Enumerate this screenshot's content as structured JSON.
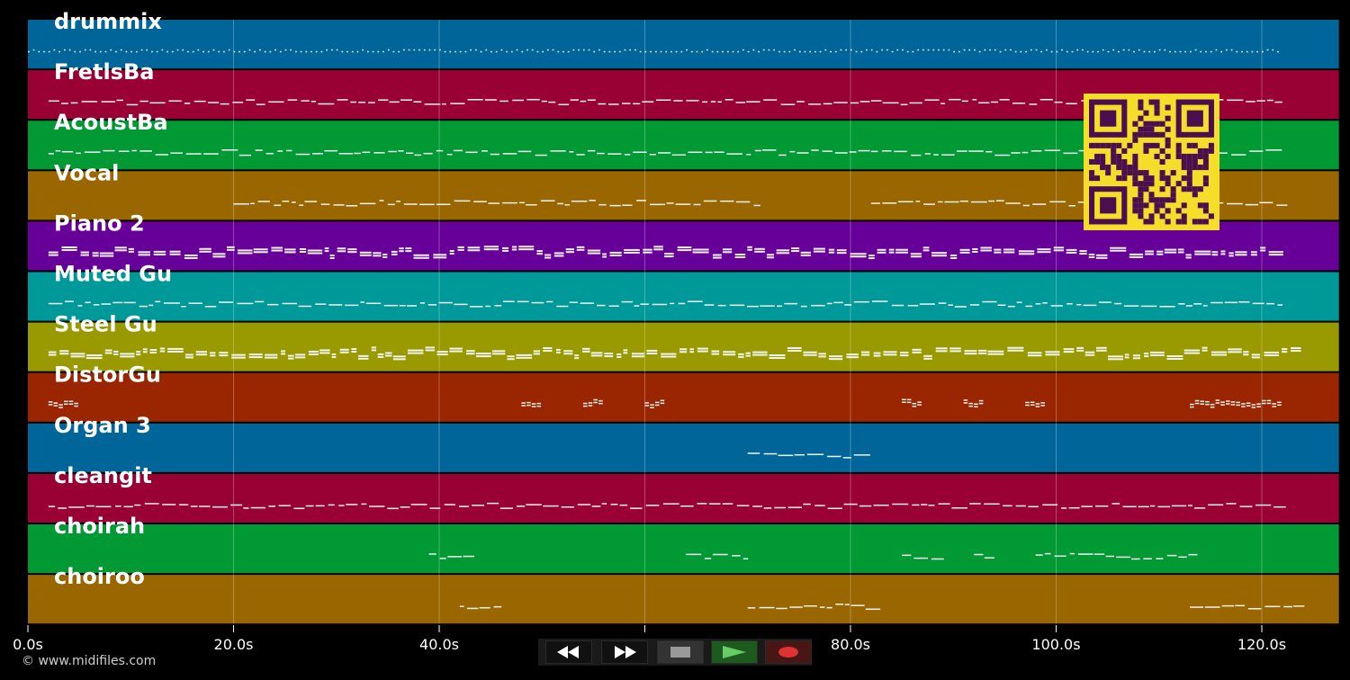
{
  "app": {
    "copyright": "© www.midifiles.com"
  },
  "timeline": {
    "ticks": [
      "0.0s",
      "20.0s",
      "40.0s",
      "60.0s",
      "80.0s",
      "100.0s",
      "120.0s"
    ],
    "tick_seconds": [
      0,
      20,
      40,
      60,
      80,
      100,
      120
    ],
    "duration_s": 127.5
  },
  "tracks": [
    {
      "name": "drummix",
      "color": "#006699",
      "active": [
        [
          0,
          122
        ]
      ],
      "style": "drum"
    },
    {
      "name": "FretlsBa",
      "color": "#990033",
      "active": [
        [
          2,
          122
        ]
      ],
      "style": "line"
    },
    {
      "name": "AcoustBa",
      "color": "#009933",
      "active": [
        [
          2,
          122
        ]
      ],
      "style": "line"
    },
    {
      "name": "Vocal",
      "color": "#996600",
      "active": [
        [
          20,
          71
        ],
        [
          82,
          122
        ]
      ],
      "style": "sparse"
    },
    {
      "name": "Piano 2",
      "color": "#660099",
      "active": [
        [
          2,
          122
        ]
      ],
      "style": "dense"
    },
    {
      "name": "Muted Gu",
      "color": "#009999",
      "active": [
        [
          2,
          122
        ]
      ],
      "style": "line"
    },
    {
      "name": "Steel Gu",
      "color": "#999900",
      "active": [
        [
          2,
          123
        ]
      ],
      "style": "dense"
    },
    {
      "name": "DistorGu",
      "color": "#992600",
      "active": [
        [
          2,
          5
        ],
        [
          48,
          50
        ],
        [
          54,
          56
        ],
        [
          60,
          62
        ],
        [
          85,
          87
        ],
        [
          91,
          93
        ],
        [
          97,
          99
        ],
        [
          113,
          122
        ]
      ],
      "style": "blocks"
    },
    {
      "name": "Organ 3",
      "color": "#006699",
      "active": [
        [
          70,
          82
        ]
      ],
      "style": "sparse"
    },
    {
      "name": "cleangit",
      "color": "#990033",
      "active": [
        [
          2,
          122
        ]
      ],
      "style": "line"
    },
    {
      "name": "choirah",
      "color": "#009933",
      "active": [
        [
          39,
          43
        ],
        [
          64,
          70
        ],
        [
          85,
          88
        ],
        [
          92,
          94
        ],
        [
          98,
          113
        ]
      ],
      "style": "sparse"
    },
    {
      "name": "choiroo",
      "color": "#996600",
      "active": [
        [
          42,
          46
        ],
        [
          70,
          82
        ],
        [
          113,
          124
        ]
      ],
      "style": "sparse"
    }
  ],
  "transport": {
    "rewind_icon": "rewind-icon",
    "fast_forward_icon": "fast-forward-icon",
    "stop_icon": "stop-icon",
    "play_icon": "play-icon",
    "record_icon": "record-icon",
    "play_color": "#66cc66",
    "record_color": "#dd3333"
  },
  "qr_code": {
    "color_dark": "#4b0f4f",
    "color_light": "#f5dd2a"
  }
}
